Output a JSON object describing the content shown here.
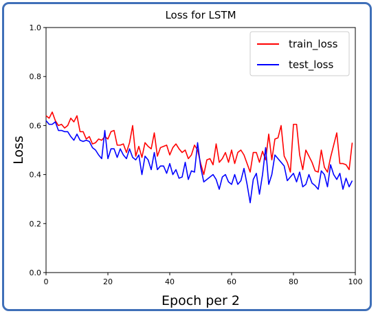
{
  "chart_data": {
    "type": "line",
    "title": "Loss for LSTM",
    "xlabel": "Epoch per 2",
    "ylabel": "Loss",
    "xlim": [
      0,
      100
    ],
    "ylim": [
      0.0,
      1.0
    ],
    "xticks": [
      "0",
      "20",
      "40",
      "60",
      "80",
      "100"
    ],
    "yticks": [
      "0.0",
      "0.2",
      "0.4",
      "0.6",
      "0.8",
      "1.0"
    ],
    "grid": false,
    "legend_position": "top-right",
    "series": [
      {
        "name": "train_loss",
        "color": "#ff0000",
        "x": [
          0,
          1,
          2,
          3,
          4,
          5,
          6,
          7,
          8,
          9,
          10,
          11,
          12,
          13,
          14,
          15,
          16,
          17,
          18,
          19,
          20,
          21,
          22,
          23,
          24,
          25,
          26,
          27,
          28,
          29,
          30,
          31,
          32,
          33,
          34,
          35,
          36,
          37,
          38,
          39,
          40,
          41,
          42,
          43,
          44,
          45,
          46,
          47,
          48,
          49,
          50,
          51,
          52,
          53,
          54,
          55,
          56,
          57,
          58,
          59,
          60,
          61,
          62,
          63,
          64,
          65,
          66,
          67,
          68,
          69,
          70,
          71,
          72,
          73,
          74,
          75,
          76,
          77,
          78,
          79,
          80,
          81,
          82,
          83,
          84,
          85,
          86,
          87,
          88,
          89,
          90,
          91,
          92,
          93,
          94,
          95,
          96,
          97,
          98,
          99
        ],
        "values": [
          0.64,
          0.63,
          0.655,
          0.62,
          0.6,
          0.605,
          0.59,
          0.6,
          0.63,
          0.615,
          0.64,
          0.575,
          0.575,
          0.545,
          0.555,
          0.525,
          0.53,
          0.545,
          0.54,
          0.555,
          0.545,
          0.575,
          0.58,
          0.52,
          0.52,
          0.525,
          0.49,
          0.53,
          0.6,
          0.475,
          0.515,
          0.47,
          0.53,
          0.515,
          0.505,
          0.57,
          0.475,
          0.51,
          0.515,
          0.52,
          0.48,
          0.51,
          0.525,
          0.505,
          0.49,
          0.5,
          0.465,
          0.48,
          0.52,
          0.5,
          0.445,
          0.4,
          0.46,
          0.465,
          0.44,
          0.525,
          0.45,
          0.465,
          0.49,
          0.45,
          0.5,
          0.445,
          0.49,
          0.5,
          0.48,
          0.445,
          0.41,
          0.49,
          0.49,
          0.45,
          0.495,
          0.46,
          0.565,
          0.46,
          0.545,
          0.55,
          0.6,
          0.475,
          0.45,
          0.41,
          0.605,
          0.605,
          0.48,
          0.42,
          0.5,
          0.475,
          0.45,
          0.415,
          0.41,
          0.5,
          0.43,
          0.41,
          0.47,
          0.52,
          0.57,
          0.445,
          0.445,
          0.44,
          0.42,
          0.53
        ]
      },
      {
        "name": "test_loss",
        "color": "#0000ff",
        "x": [
          0,
          1,
          2,
          3,
          4,
          5,
          6,
          7,
          8,
          9,
          10,
          11,
          12,
          13,
          14,
          15,
          16,
          17,
          18,
          19,
          20,
          21,
          22,
          23,
          24,
          25,
          26,
          27,
          28,
          29,
          30,
          31,
          32,
          33,
          34,
          35,
          36,
          37,
          38,
          39,
          40,
          41,
          42,
          43,
          44,
          45,
          46,
          47,
          48,
          49,
          50,
          51,
          52,
          53,
          54,
          55,
          56,
          57,
          58,
          59,
          60,
          61,
          62,
          63,
          64,
          65,
          66,
          67,
          68,
          69,
          70,
          71,
          72,
          73,
          74,
          75,
          76,
          77,
          78,
          79,
          80,
          81,
          82,
          83,
          84,
          85,
          86,
          87,
          88,
          89,
          90,
          91,
          92,
          93,
          94,
          95,
          96,
          97,
          98,
          99
        ],
        "values": [
          0.62,
          0.605,
          0.605,
          0.615,
          0.58,
          0.58,
          0.575,
          0.575,
          0.555,
          0.54,
          0.565,
          0.54,
          0.535,
          0.54,
          0.535,
          0.51,
          0.5,
          0.48,
          0.465,
          0.58,
          0.465,
          0.505,
          0.505,
          0.47,
          0.505,
          0.48,
          0.465,
          0.505,
          0.47,
          0.46,
          0.48,
          0.4,
          0.475,
          0.46,
          0.42,
          0.49,
          0.42,
          0.435,
          0.435,
          0.405,
          0.445,
          0.4,
          0.42,
          0.385,
          0.39,
          0.45,
          0.38,
          0.415,
          0.41,
          0.53,
          0.43,
          0.37,
          0.38,
          0.39,
          0.4,
          0.38,
          0.34,
          0.39,
          0.4,
          0.37,
          0.36,
          0.4,
          0.36,
          0.375,
          0.425,
          0.36,
          0.285,
          0.38,
          0.405,
          0.32,
          0.4,
          0.51,
          0.36,
          0.4,
          0.48,
          0.465,
          0.45,
          0.435,
          0.375,
          0.39,
          0.405,
          0.37,
          0.41,
          0.35,
          0.36,
          0.4,
          0.365,
          0.355,
          0.34,
          0.415,
          0.4,
          0.35,
          0.44,
          0.4,
          0.38,
          0.405,
          0.34,
          0.385,
          0.35,
          0.375
        ]
      }
    ]
  }
}
